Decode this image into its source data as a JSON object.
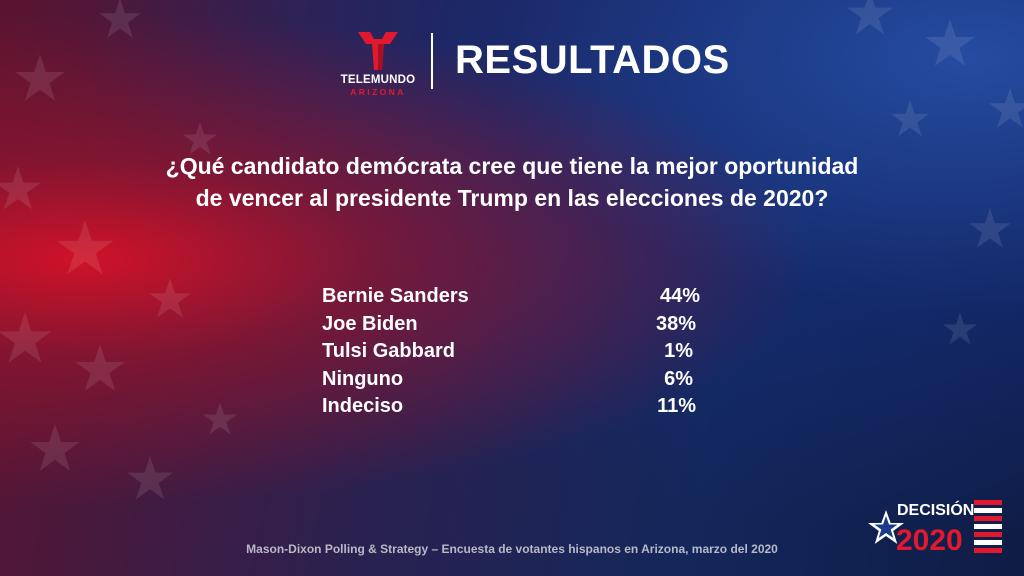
{
  "colors": {
    "accent_red": "#e0192f",
    "background_blue": "#13275b"
  },
  "brand": {
    "logo_icon": "telemundo-t-icon",
    "logo_name": "TELEMUNDO",
    "logo_region": "ARIZONA"
  },
  "header": {
    "title": "RESULTADOS"
  },
  "question": {
    "line1": "¿Qué candidato demócrata cree que tiene la mejor oportunidad",
    "line2": "de vencer al presidente Trump en las elecciones de 2020?"
  },
  "results": [
    {
      "name": "Bernie Sanders",
      "pct": "44%"
    },
    {
      "name": "Joe Biden",
      "pct": "38%"
    },
    {
      "name": "Tulsi Gabbard",
      "pct": "1%"
    },
    {
      "name": "Ninguno",
      "pct": "6%"
    },
    {
      "name": "Indeciso",
      "pct": "11%"
    }
  ],
  "footer": {
    "source": "Mason-Dixon  Polling & Strategy – Encuesta de votantes hispanos en Arizona, marzo del 2020"
  },
  "badge": {
    "top": "DECISIÓN",
    "bottom": "2020",
    "icon": "star-flag-icon"
  }
}
